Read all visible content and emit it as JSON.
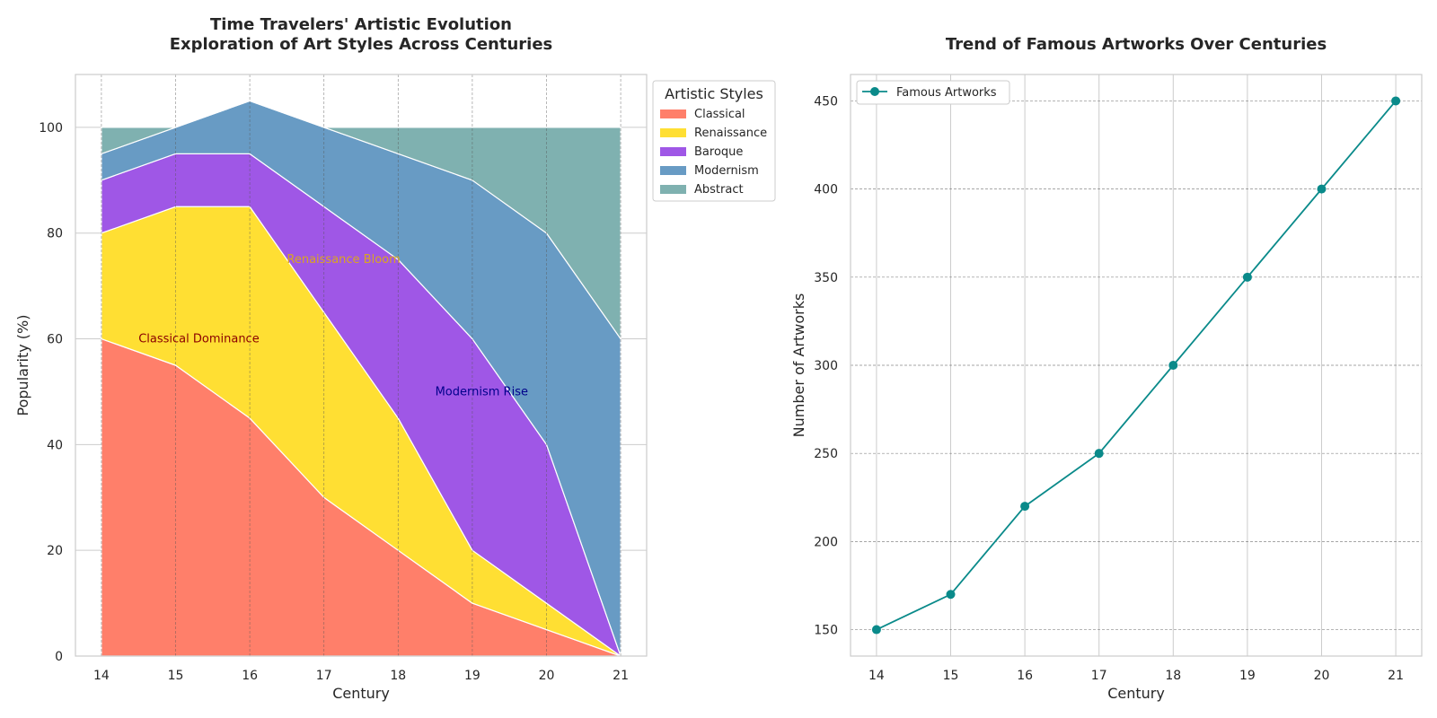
{
  "chart_data": [
    {
      "type": "area",
      "title": "Time Travelers' Artistic Evolution\nExploration of Art Styles Across Centuries",
      "xlabel": "Century",
      "ylabel": "Popularity (%)",
      "x": [
        14,
        15,
        16,
        17,
        18,
        19,
        20,
        21
      ],
      "ylim": [
        0,
        110
      ],
      "yticks": [
        0,
        20,
        40,
        60,
        80,
        100
      ],
      "stacked": true,
      "series": [
        {
          "name": "Classical",
          "values": [
            60,
            55,
            45,
            30,
            20,
            10,
            5,
            0
          ]
        },
        {
          "name": "Renaissance",
          "values": [
            20,
            30,
            40,
            35,
            25,
            10,
            5,
            0
          ]
        },
        {
          "name": "Baroque",
          "values": [
            10,
            10,
            10,
            20,
            30,
            40,
            30,
            0
          ]
        },
        {
          "name": "Modernism",
          "values": [
            5,
            5,
            10,
            15,
            20,
            30,
            40,
            60
          ]
        },
        {
          "name": "Abstract",
          "values": [
            5,
            0,
            0,
            0,
            5,
            10,
            20,
            40
          ]
        }
      ],
      "legend": {
        "title": "Artistic Styles",
        "placement": "outside-top-right"
      },
      "annotations": [
        {
          "text": "Classical Dominance",
          "x": 14.5,
          "y": 60,
          "color": "#8b0000"
        },
        {
          "text": "Renaissance Bloom",
          "x": 16.5,
          "y": 75,
          "color": "#daa520"
        },
        {
          "text": "Modernism Rise",
          "x": 18.5,
          "y": 50,
          "color": "#00008b"
        }
      ],
      "grid": true
    },
    {
      "type": "line",
      "title": "Trend of Famous Artworks Over Centuries",
      "xlabel": "Century",
      "ylabel": "Number of Artworks",
      "x": [
        14,
        15,
        16,
        17,
        18,
        19,
        20,
        21
      ],
      "ylim": [
        135,
        465
      ],
      "yticks": [
        150,
        200,
        250,
        300,
        350,
        400,
        450
      ],
      "series": [
        {
          "name": "Famous Artworks",
          "values": [
            150,
            170,
            220,
            250,
            300,
            350,
            400,
            450
          ]
        }
      ],
      "legend": {
        "placement": "top-left"
      },
      "grid": true
    }
  ],
  "colors": {
    "Classical": "#ff7f6a",
    "Renaissance": "#ffdf33",
    "Baroque": "#9f57e6",
    "Modernism": "#689bc4",
    "Abstract": "#7fb1b0",
    "line": "#0a8a8a"
  }
}
